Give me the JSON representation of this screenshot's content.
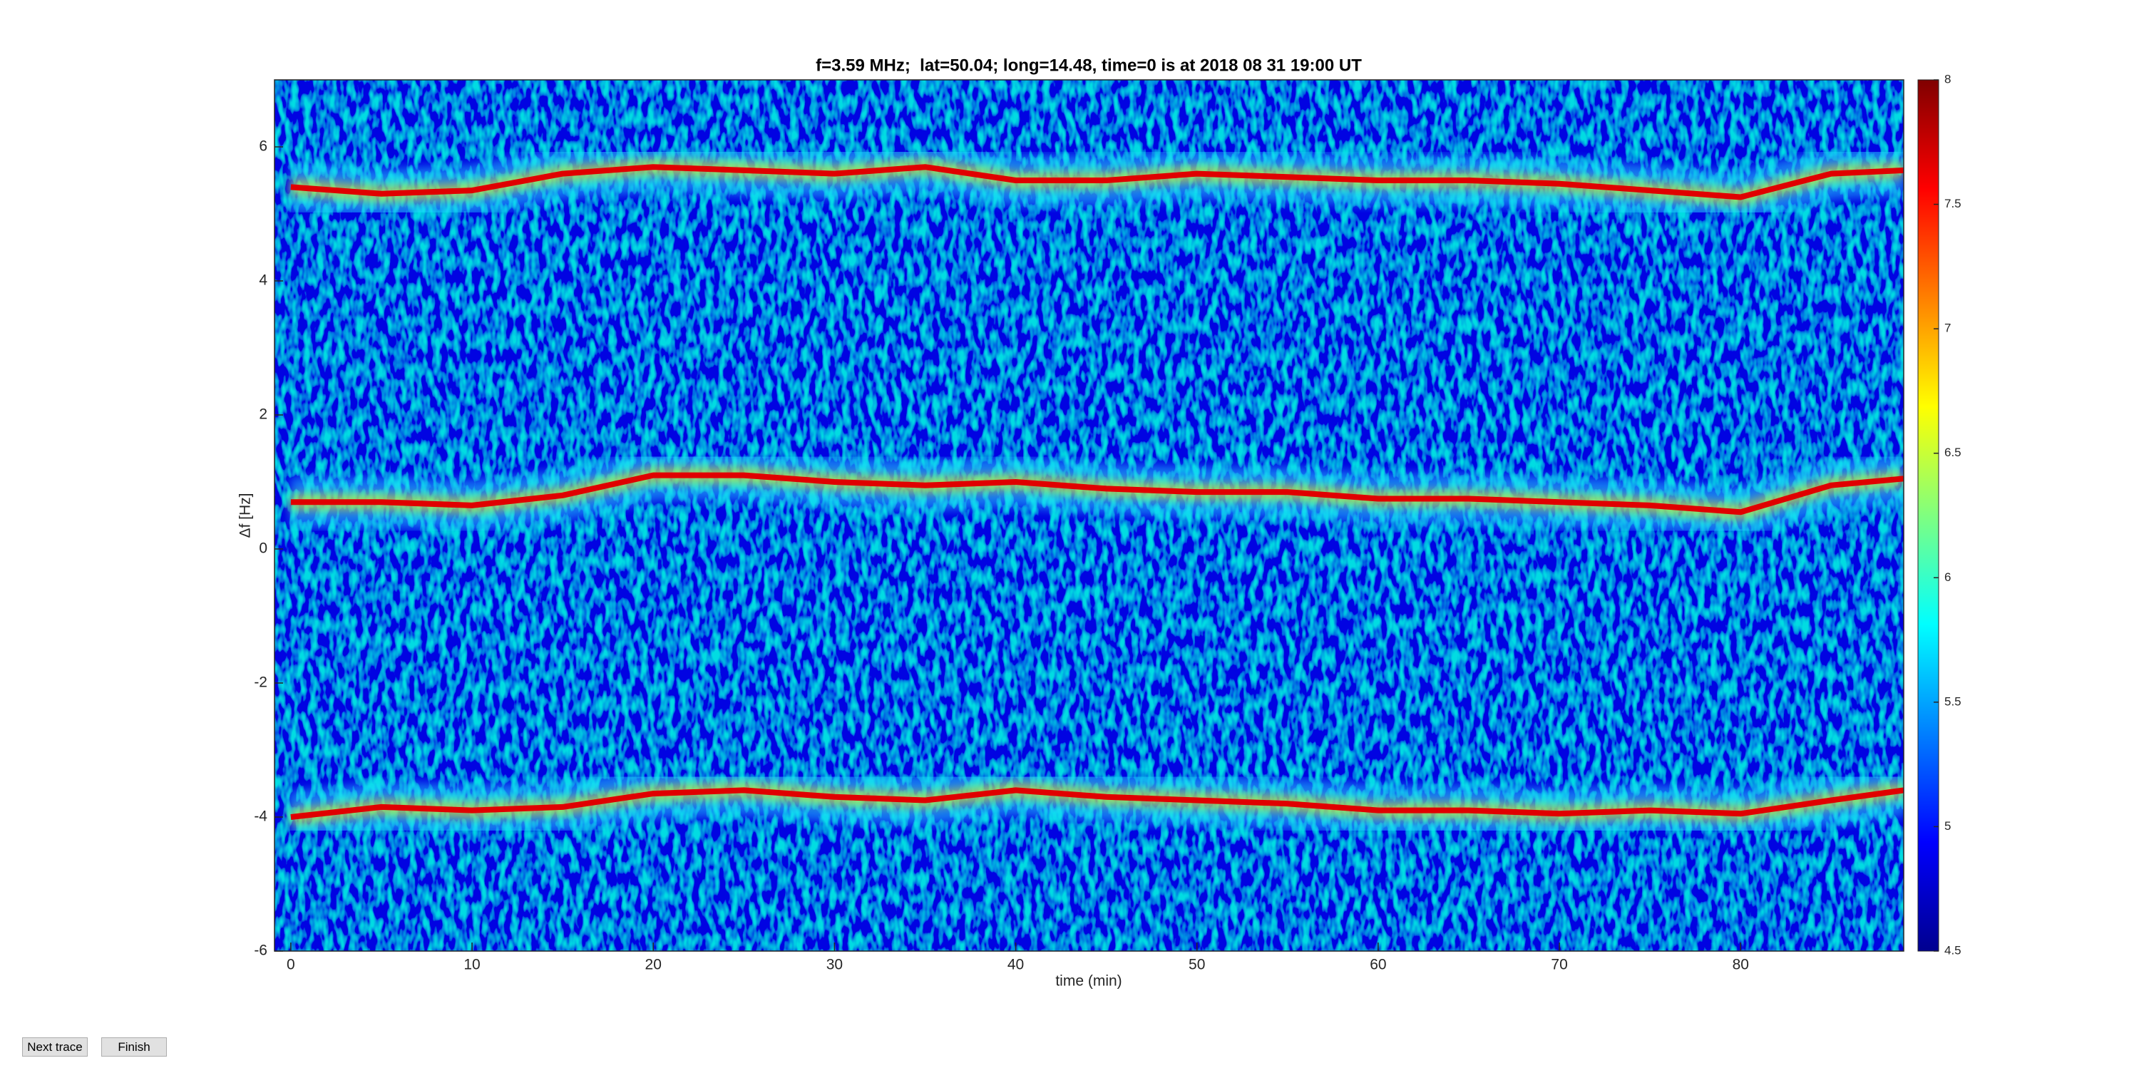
{
  "chart_data": {
    "type": "spectrogram",
    "title": "f=3.59 MHz;  lat=50.04; long=14.48, time=0 is at 2018 08 31 19:00 UT",
    "xlabel": "time (min)",
    "ylabel": "Δf [Hz]",
    "x": [
      0,
      5,
      10,
      15,
      20,
      25,
      30,
      35,
      40,
      45,
      50,
      55,
      60,
      65,
      70,
      75,
      80,
      85,
      89
    ],
    "series": [
      {
        "color": "#e00000",
        "values": [
          5.4,
          5.3,
          5.35,
          5.6,
          5.7,
          5.65,
          5.6,
          5.7,
          5.5,
          5.5,
          5.6,
          5.55,
          5.5,
          5.5,
          5.45,
          5.35,
          5.25,
          5.6,
          5.65
        ]
      },
      {
        "color": "#e00000",
        "values": [
          0.7,
          0.7,
          0.65,
          0.8,
          1.1,
          1.1,
          1.0,
          0.95,
          1.0,
          0.9,
          0.85,
          0.85,
          0.75,
          0.75,
          0.7,
          0.65,
          0.55,
          0.95,
          1.05
        ]
      },
      {
        "color": "#e00000",
        "values": [
          -4.0,
          -3.85,
          -3.9,
          -3.85,
          -3.65,
          -3.6,
          -3.7,
          -3.75,
          -3.6,
          -3.7,
          -3.75,
          -3.8,
          -3.9,
          -3.9,
          -3.95,
          -3.9,
          -3.95,
          -3.75,
          -3.6
        ]
      }
    ],
    "xlim": [
      -0.9,
      89
    ],
    "xticks": [
      0,
      10,
      20,
      30,
      40,
      50,
      60,
      70,
      80
    ],
    "ylim": [
      -6,
      7
    ],
    "yticks": [
      -6,
      -4,
      -2,
      0,
      2,
      4,
      6
    ],
    "colormap": "jet",
    "clim": [
      4.5,
      8
    ],
    "cticks": [
      4.5,
      5,
      5.5,
      6,
      6.5,
      7,
      7.5,
      8
    ]
  },
  "buttons": [
    "Next trace",
    "Finish"
  ]
}
